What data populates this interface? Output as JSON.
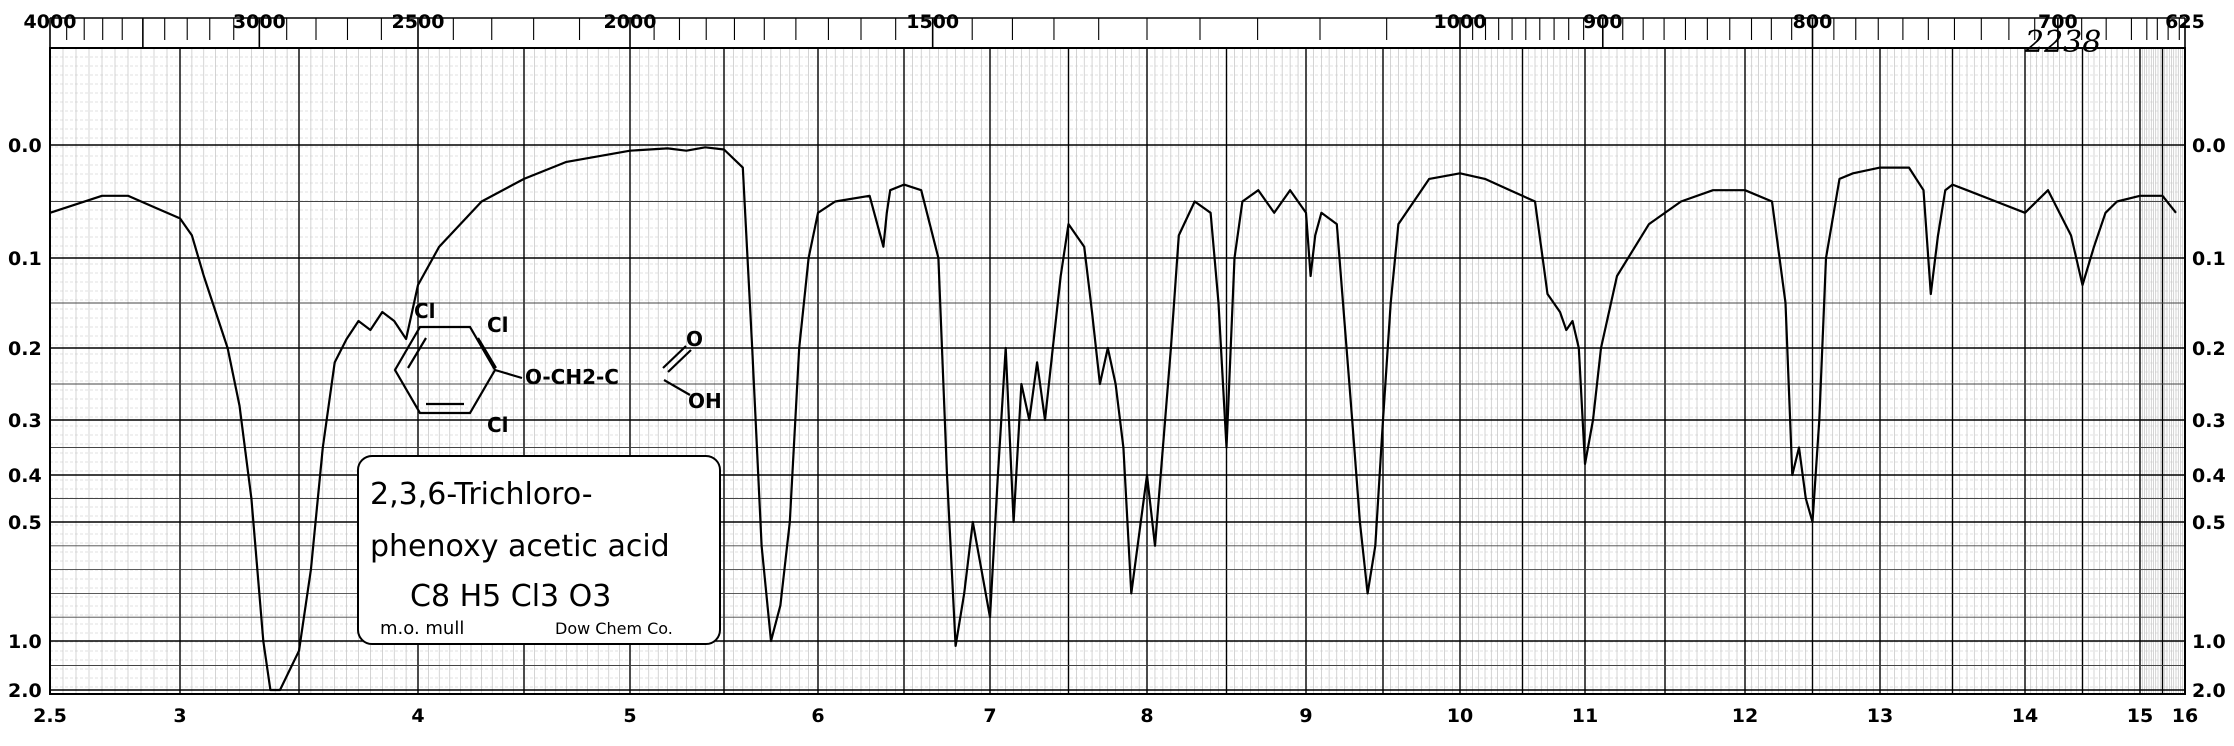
{
  "chart_data": {
    "type": "line",
    "title": "",
    "spectrum_id": "2238",
    "compound": {
      "name_line1": "2,3,6-Trichloro-",
      "name_line2": "phenoxy acetic acid",
      "formula": "C8 H5 Cl3 O3",
      "method": "m.o. mull",
      "source": "Dow Chem Co."
    },
    "structure_labels": {
      "cl_top_left": "Cl",
      "cl_top_right": "Cl",
      "cl_bottom": "Cl",
      "side_chain": "O-CH2-C",
      "carbonyl_o": "O",
      "hydroxyl": "OH"
    },
    "x_bottom_ticks": [
      "2.5",
      "3",
      "4",
      "5",
      "6",
      "7",
      "8",
      "9",
      "10",
      "11",
      "12",
      "13",
      "14",
      "15",
      "16"
    ],
    "x_top_ticks": [
      "4000",
      "3000",
      "2500",
      "2000",
      "1500",
      "1000",
      "900",
      "800",
      "700",
      "625"
    ],
    "y_ticks": [
      "0.0",
      "0.1",
      "0.2",
      "0.3",
      "0.4",
      "0.5",
      "1.0",
      "2.0"
    ],
    "xlim": [
      2.5,
      16
    ],
    "ylim": [
      0.0,
      2.0
    ],
    "y_scale": "absorbance (nonlinear)",
    "grid": true,
    "series": [
      {
        "x": [
          2.5,
          2.7,
          2.8,
          2.9,
          3.0,
          3.05,
          3.1,
          3.15,
          3.2,
          3.25,
          3.3,
          3.35,
          3.38,
          3.42,
          3.46,
          3.5,
          3.55,
          3.6,
          3.65,
          3.7,
          3.75,
          3.8,
          3.85,
          3.9,
          3.95,
          4.0,
          4.1,
          4.3,
          4.5,
          4.7,
          5.0,
          5.2,
          5.3,
          5.4,
          5.5,
          5.6,
          5.65,
          5.7,
          5.75,
          5.8,
          5.85,
          5.9,
          5.95,
          6.0,
          6.1,
          6.3,
          6.38,
          6.4,
          6.42,
          6.5,
          6.6,
          6.7,
          6.75,
          6.8,
          6.85,
          6.9,
          6.95,
          7.0,
          7.05,
          7.1,
          7.15,
          7.2,
          7.25,
          7.3,
          7.35,
          7.4,
          7.45,
          7.5,
          7.6,
          7.65,
          7.7,
          7.75,
          7.8,
          7.85,
          7.9,
          7.95,
          8.0,
          8.05,
          8.1,
          8.15,
          8.2,
          8.3,
          8.4,
          8.45,
          8.5,
          8.55,
          8.6,
          8.7,
          8.8,
          8.9,
          9.0,
          9.03,
          9.06,
          9.1,
          9.2,
          9.3,
          9.35,
          9.4,
          9.45,
          9.5,
          9.55,
          9.6,
          9.7,
          9.8,
          10.0,
          10.2,
          10.4,
          10.6,
          10.7,
          10.8,
          10.85,
          10.9,
          10.95,
          11.0,
          11.05,
          11.1,
          11.2,
          11.4,
          11.6,
          11.8,
          12.0,
          12.2,
          12.3,
          12.35,
          12.4,
          12.45,
          12.5,
          12.55,
          12.6,
          12.7,
          12.8,
          13.0,
          13.2,
          13.3,
          13.35,
          13.4,
          13.45,
          13.5,
          13.6,
          13.8,
          14.0,
          14.2,
          14.4,
          14.5,
          14.6,
          14.7,
          14.8,
          15.0,
          15.5,
          15.8
        ],
        "y": [
          0.06,
          0.045,
          0.045,
          0.055,
          0.065,
          0.08,
          0.12,
          0.16,
          0.2,
          0.28,
          0.45,
          1.0,
          2.0,
          2.0,
          1.6,
          1.2,
          0.7,
          0.35,
          0.22,
          0.19,
          0.17,
          0.18,
          0.16,
          0.17,
          0.19,
          0.13,
          0.09,
          0.05,
          0.03,
          0.015,
          0.005,
          0.003,
          0.005,
          0.002,
          0.004,
          0.02,
          0.2,
          0.6,
          1.0,
          0.85,
          0.5,
          0.2,
          0.1,
          0.06,
          0.05,
          0.045,
          0.09,
          0.06,
          0.04,
          0.035,
          0.04,
          0.1,
          0.4,
          1.1,
          0.8,
          0.5,
          0.7,
          0.9,
          0.4,
          0.2,
          0.5,
          0.25,
          0.3,
          0.22,
          0.3,
          0.2,
          0.12,
          0.07,
          0.09,
          0.16,
          0.25,
          0.2,
          0.25,
          0.35,
          0.8,
          0.55,
          0.4,
          0.6,
          0.35,
          0.2,
          0.08,
          0.05,
          0.06,
          0.15,
          0.35,
          0.1,
          0.05,
          0.04,
          0.06,
          0.04,
          0.06,
          0.12,
          0.08,
          0.06,
          0.07,
          0.3,
          0.5,
          0.8,
          0.6,
          0.3,
          0.15,
          0.07,
          0.05,
          0.03,
          0.025,
          0.03,
          0.04,
          0.05,
          0.14,
          0.16,
          0.18,
          0.17,
          0.2,
          0.38,
          0.3,
          0.2,
          0.12,
          0.07,
          0.05,
          0.04,
          0.04,
          0.05,
          0.15,
          0.4,
          0.35,
          0.45,
          0.5,
          0.3,
          0.1,
          0.03,
          0.025,
          0.02,
          0.02,
          0.04,
          0.14,
          0.08,
          0.04,
          0.035,
          0.04,
          0.05,
          0.06,
          0.04,
          0.08,
          0.13,
          0.09,
          0.06,
          0.05,
          0.045,
          0.045,
          0.06
        ]
      }
    ]
  }
}
